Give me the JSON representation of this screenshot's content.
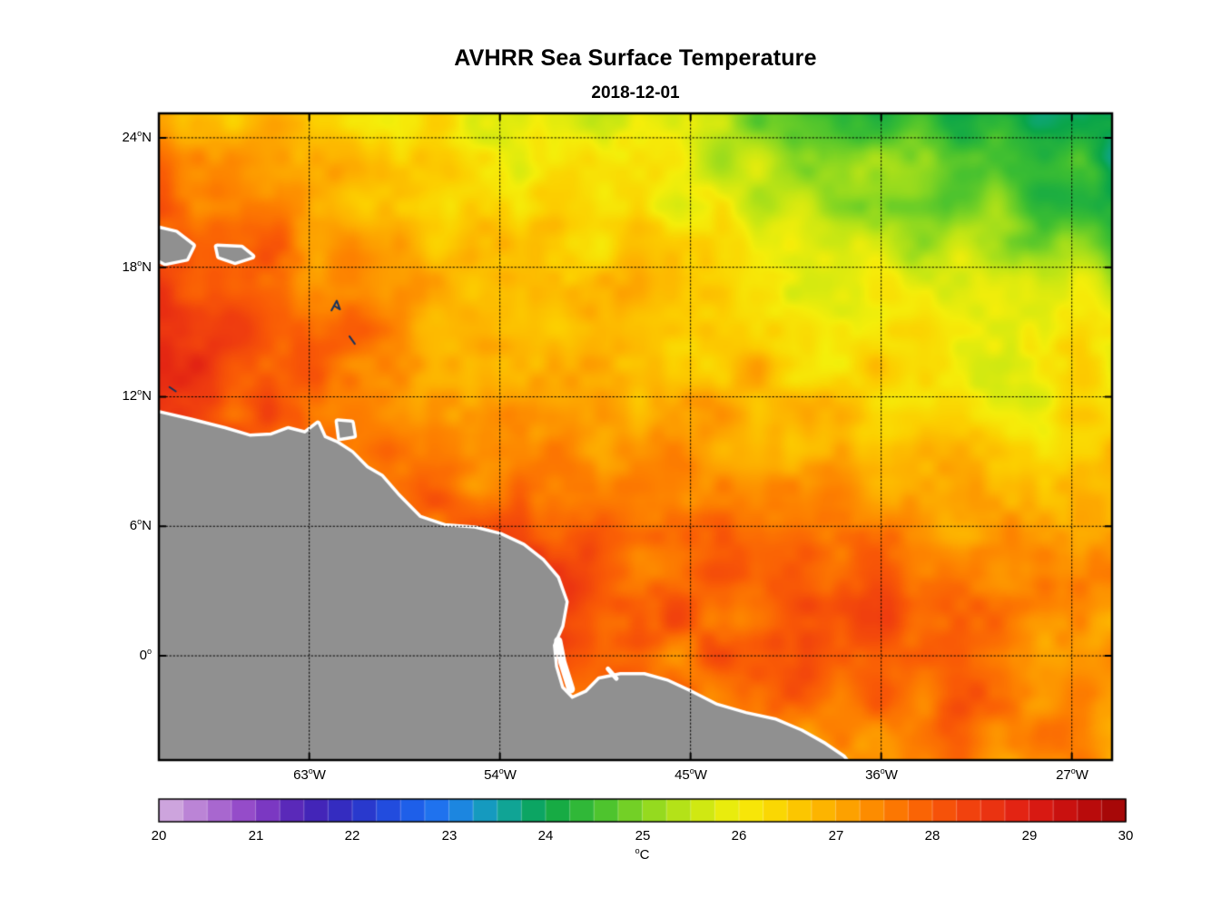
{
  "chart_data": {
    "type": "heatmap",
    "title": "AVHRR Sea Surface Temperature",
    "subtitle": "2018-12-01",
    "legend_position": "bottom-colorbar",
    "grid_on": true,
    "colorbar": {
      "min": 20,
      "max": 30,
      "segments": 40,
      "ticks": [
        "20",
        "21",
        "22",
        "23",
        "24",
        "25",
        "26",
        "27",
        "28",
        "29",
        "30"
      ],
      "deg_mark": "o",
      "unit": "C"
    },
    "colormap_stops": [
      [
        20.0,
        "#d6b4e0"
      ],
      [
        20.5,
        "#b274d2"
      ],
      [
        21.0,
        "#8b3fc6"
      ],
      [
        21.5,
        "#4a22b4"
      ],
      [
        22.0,
        "#2d2fc4"
      ],
      [
        22.5,
        "#1e55e6"
      ],
      [
        23.0,
        "#1f7cf0"
      ],
      [
        23.5,
        "#12a4ae"
      ],
      [
        24.0,
        "#0aa54a"
      ],
      [
        24.5,
        "#3cbe32"
      ],
      [
        25.0,
        "#85d622"
      ],
      [
        25.5,
        "#c3e614"
      ],
      [
        26.0,
        "#f5ee0a"
      ],
      [
        26.5,
        "#fccf00"
      ],
      [
        27.0,
        "#fdab00"
      ],
      [
        27.5,
        "#fd8100"
      ],
      [
        28.0,
        "#f95a06"
      ],
      [
        28.5,
        "#ee3a10"
      ],
      [
        29.0,
        "#df1d14"
      ],
      [
        29.5,
        "#c20d0d"
      ],
      [
        30.0,
        "#9e0606"
      ]
    ],
    "axes": {
      "lon_min": -70.1,
      "lon_max": -25.1,
      "lat_min": -4.83,
      "lat_max": 25.13,
      "deg_mark": "o",
      "x_ticks": [
        {
          "lon": -63,
          "label": "63",
          "hem": "W"
        },
        {
          "lon": -54,
          "label": "54",
          "hem": "W"
        },
        {
          "lon": -45,
          "label": "45",
          "hem": "W"
        },
        {
          "lon": -36,
          "label": "36",
          "hem": "W"
        },
        {
          "lon": -27,
          "label": "27",
          "hem": "W"
        }
      ],
      "y_ticks": [
        {
          "lat": 24,
          "label": "24",
          "hem": "N"
        },
        {
          "lat": 18,
          "label": "18",
          "hem": "N"
        },
        {
          "lat": 12,
          "label": "12",
          "hem": "N"
        },
        {
          "lat": 6,
          "label": "6",
          "hem": "N"
        },
        {
          "lat": 0,
          "label": "0",
          "hem": ""
        }
      ]
    },
    "sst_grid": {
      "units": "degC",
      "lons": [
        -70,
        -67.5,
        -65,
        -62.5,
        -60,
        -57.5,
        -55,
        -52.5,
        -50,
        -47.5,
        -45,
        -42.5,
        -40,
        -37.5,
        -35,
        -32.5,
        -30,
        -27.5,
        -25
      ],
      "lats": [
        25,
        22.5,
        20,
        17.5,
        15,
        12.5,
        10,
        7.5,
        5,
        2.5,
        0,
        -2.5,
        -5
      ],
      "values": [
        [
          27.2,
          27.0,
          26.8,
          26.5,
          26.3,
          26.2,
          26.0,
          25.9,
          25.8,
          25.6,
          25.4,
          25.1,
          24.8,
          24.5,
          24.3,
          24.1,
          24.0,
          23.9,
          23.7
        ],
        [
          27.7,
          27.5,
          27.2,
          26.9,
          26.6,
          26.4,
          26.3,
          26.2,
          26.0,
          25.9,
          25.7,
          25.5,
          25.2,
          25.0,
          24.8,
          24.6,
          24.4,
          24.3,
          24.1
        ],
        [
          28.1,
          27.9,
          27.6,
          27.2,
          26.9,
          26.7,
          26.6,
          26.5,
          26.4,
          26.3,
          26.1,
          25.9,
          25.7,
          25.5,
          25.3,
          25.1,
          25.0,
          24.9,
          24.7
        ],
        [
          28.4,
          28.2,
          27.9,
          27.5,
          27.1,
          26.9,
          26.8,
          26.7,
          26.6,
          26.5,
          26.4,
          26.3,
          26.1,
          26.0,
          25.8,
          25.7,
          25.6,
          25.6,
          25.5
        ],
        [
          28.6,
          28.5,
          28.1,
          27.7,
          27.4,
          27.1,
          27.0,
          26.9,
          26.8,
          26.7,
          26.6,
          26.5,
          26.4,
          26.2,
          26.1,
          26.0,
          25.9,
          26.0,
          26.1
        ],
        [
          28.5,
          28.3,
          28.0,
          27.7,
          27.5,
          27.3,
          27.2,
          27.1,
          27.0,
          26.9,
          26.8,
          26.7,
          26.6,
          26.5,
          26.3,
          26.1,
          25.8,
          26.0,
          26.2
        ],
        [
          28.2,
          28.1,
          28.0,
          27.9,
          27.8,
          27.6,
          27.4,
          27.3,
          27.2,
          27.1,
          27.0,
          27.0,
          26.9,
          26.8,
          26.7,
          26.5,
          26.4,
          26.4,
          26.5
        ],
        [
          28.2,
          28.2,
          28.1,
          28.0,
          28.0,
          27.9,
          27.7,
          27.5,
          27.4,
          27.3,
          27.2,
          27.3,
          27.4,
          27.3,
          27.1,
          26.9,
          26.8,
          26.7,
          26.7
        ],
        [
          28.3,
          28.3,
          28.2,
          28.2,
          28.1,
          28.0,
          28.0,
          28.1,
          27.9,
          27.6,
          27.5,
          27.7,
          27.9,
          27.9,
          27.7,
          27.4,
          27.1,
          27.0,
          27.0
        ],
        [
          28.3,
          28.3,
          28.3,
          28.2,
          28.2,
          28.1,
          28.1,
          28.2,
          28.3,
          28.0,
          27.8,
          27.9,
          28.1,
          28.3,
          28.1,
          27.8,
          27.5,
          27.3,
          27.2
        ],
        [
          28.2,
          28.2,
          28.2,
          28.1,
          28.1,
          28.1,
          28.0,
          28.0,
          28.0,
          27.9,
          27.8,
          27.9,
          28.0,
          28.2,
          28.1,
          27.9,
          27.6,
          27.4,
          27.3
        ],
        [
          28.0,
          28.0,
          28.0,
          28.0,
          27.9,
          27.9,
          27.8,
          27.8,
          27.7,
          27.7,
          27.6,
          27.6,
          27.6,
          27.7,
          27.8,
          27.7,
          27.5,
          27.3,
          27.2
        ],
        [
          27.9,
          27.9,
          27.9,
          27.8,
          27.8,
          27.8,
          27.7,
          27.6,
          27.5,
          27.4,
          27.4,
          27.3,
          27.3,
          27.4,
          27.4,
          27.3,
          27.2,
          27.2,
          27.1
        ]
      ]
    },
    "land": {
      "fill": "#909090",
      "fringe": "#ffffff",
      "mark_color": "#15325e",
      "continent": [
        [
          -70.6,
          11.35
        ],
        [
          -68.6,
          10.9
        ],
        [
          -67.0,
          10.5
        ],
        [
          -65.8,
          10.15
        ],
        [
          -64.8,
          10.2
        ],
        [
          -64.0,
          10.5
        ],
        [
          -63.2,
          10.3
        ],
        [
          -62.6,
          10.75
        ],
        [
          -62.3,
          10.1
        ],
        [
          -61.7,
          9.85
        ],
        [
          -61.0,
          9.4
        ],
        [
          -60.3,
          8.7
        ],
        [
          -59.6,
          8.3
        ],
        [
          -58.8,
          7.4
        ],
        [
          -57.8,
          6.4
        ],
        [
          -56.6,
          6.0
        ],
        [
          -55.2,
          5.9
        ],
        [
          -54.0,
          5.6
        ],
        [
          -52.9,
          5.1
        ],
        [
          -52.0,
          4.4
        ],
        [
          -51.3,
          3.6
        ],
        [
          -50.9,
          2.5
        ],
        [
          -51.1,
          1.4
        ],
        [
          -51.5,
          0.5
        ],
        [
          -51.4,
          -0.5
        ],
        [
          -51.1,
          -1.5
        ],
        [
          -50.6,
          -2.0
        ],
        [
          -49.9,
          -1.7
        ],
        [
          -49.3,
          -1.1
        ],
        [
          -48.3,
          -0.9
        ],
        [
          -47.2,
          -0.9
        ],
        [
          -46.1,
          -1.2
        ],
        [
          -45.0,
          -1.7
        ],
        [
          -43.8,
          -2.3
        ],
        [
          -42.4,
          -2.7
        ],
        [
          -41.0,
          -3.0
        ],
        [
          -39.8,
          -3.5
        ],
        [
          -38.7,
          -4.1
        ],
        [
          -37.8,
          -4.7
        ],
        [
          -37.1,
          -5.6
        ],
        [
          -70.6,
          -5.6
        ]
      ],
      "islands": [
        [
          [
            -70.6,
            19.9
          ],
          [
            -69.3,
            19.6
          ],
          [
            -68.5,
            19.0
          ],
          [
            -68.8,
            18.4
          ],
          [
            -69.8,
            18.2
          ],
          [
            -70.6,
            18.6
          ]
        ],
        [
          [
            -67.35,
            18.95
          ],
          [
            -66.2,
            18.9
          ],
          [
            -65.7,
            18.5
          ],
          [
            -66.5,
            18.25
          ],
          [
            -67.25,
            18.5
          ]
        ],
        [
          [
            -61.65,
            10.85
          ],
          [
            -61.0,
            10.8
          ],
          [
            -60.9,
            10.2
          ],
          [
            -61.55,
            10.1
          ]
        ]
      ],
      "channels": [
        {
          "pts": [
            [
              -51.25,
              0.7
            ],
            [
              -51.05,
              -0.3
            ],
            [
              -50.65,
              -1.55
            ]
          ],
          "w": 9
        },
        {
          "pts": [
            [
              -48.9,
              -0.6
            ],
            [
              -48.5,
              -1.05
            ]
          ],
          "w": 5
        }
      ],
      "island_marks": [
        {
          "pts": [
            [
              -61.95,
              16.0
            ],
            [
              -61.7,
              16.45
            ],
            [
              -61.55,
              16.05
            ],
            [
              -61.8,
              16.2
            ]
          ]
        },
        {
          "pts": [
            [
              -61.1,
              14.8
            ],
            [
              -60.85,
              14.45
            ]
          ]
        },
        {
          "pts": [
            [
              -69.6,
              12.45
            ],
            [
              -69.3,
              12.25
            ]
          ]
        }
      ]
    }
  }
}
